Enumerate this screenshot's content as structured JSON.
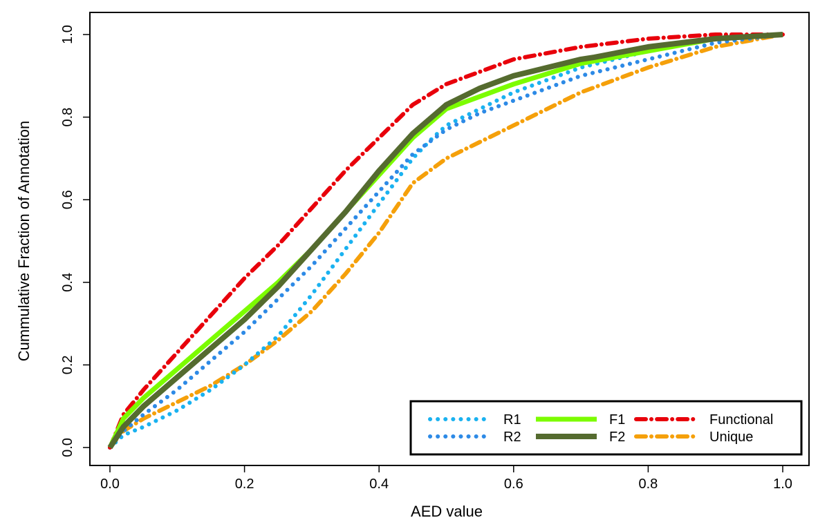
{
  "chart_data": {
    "type": "line",
    "xlabel": "AED value",
    "ylabel": "Cummulative Fraction of Annotation",
    "xlim": [
      0,
      1
    ],
    "ylim": [
      0,
      1
    ],
    "xticks": [
      "0.0",
      "0.2",
      "0.4",
      "0.6",
      "0.8",
      "1.0"
    ],
    "yticks": [
      "0.0",
      "0.2",
      "0.4",
      "0.6",
      "0.8",
      "1.0"
    ],
    "grid": false,
    "legend_position": "bottom-right",
    "series": [
      {
        "name": "R1",
        "color": "#1ab2f0",
        "style": "dotted",
        "x": [
          0,
          0.02,
          0.05,
          0.1,
          0.15,
          0.2,
          0.25,
          0.3,
          0.35,
          0.4,
          0.45,
          0.48,
          0.5,
          0.55,
          0.6,
          0.7,
          0.8,
          0.9,
          1.0
        ],
        "y": [
          0,
          0.03,
          0.05,
          0.09,
          0.14,
          0.2,
          0.27,
          0.37,
          0.48,
          0.59,
          0.7,
          0.75,
          0.78,
          0.82,
          0.86,
          0.92,
          0.96,
          0.99,
          1.0
        ]
      },
      {
        "name": "R2",
        "color": "#2d8ae6",
        "style": "dotted",
        "x": [
          0,
          0.02,
          0.05,
          0.1,
          0.15,
          0.2,
          0.25,
          0.3,
          0.35,
          0.4,
          0.45,
          0.5,
          0.55,
          0.6,
          0.7,
          0.8,
          0.9,
          1.0
        ],
        "y": [
          0,
          0.04,
          0.08,
          0.14,
          0.21,
          0.28,
          0.36,
          0.44,
          0.53,
          0.62,
          0.71,
          0.77,
          0.81,
          0.84,
          0.9,
          0.94,
          0.98,
          1.0
        ]
      },
      {
        "name": "F1",
        "color": "#7cfc00",
        "style": "solid",
        "x": [
          0,
          0.02,
          0.05,
          0.1,
          0.15,
          0.2,
          0.25,
          0.3,
          0.35,
          0.4,
          0.45,
          0.5,
          0.55,
          0.6,
          0.7,
          0.8,
          0.9,
          1.0
        ],
        "y": [
          0,
          0.07,
          0.12,
          0.19,
          0.26,
          0.33,
          0.4,
          0.48,
          0.57,
          0.66,
          0.75,
          0.82,
          0.85,
          0.88,
          0.93,
          0.96,
          0.99,
          1.0
        ]
      },
      {
        "name": "F2",
        "color": "#556b2f",
        "style": "solid",
        "x": [
          0,
          0.02,
          0.05,
          0.1,
          0.15,
          0.2,
          0.25,
          0.3,
          0.35,
          0.4,
          0.45,
          0.5,
          0.55,
          0.6,
          0.7,
          0.72,
          0.8,
          0.9,
          1.0
        ],
        "y": [
          0,
          0.05,
          0.1,
          0.17,
          0.24,
          0.31,
          0.39,
          0.48,
          0.57,
          0.67,
          0.76,
          0.83,
          0.87,
          0.9,
          0.94,
          0.945,
          0.97,
          0.99,
          1.0
        ]
      },
      {
        "name": "Functional",
        "color": "#e8000b",
        "style": "dashdot",
        "x": [
          0,
          0.02,
          0.05,
          0.1,
          0.15,
          0.2,
          0.25,
          0.3,
          0.35,
          0.4,
          0.45,
          0.5,
          0.55,
          0.6,
          0.7,
          0.8,
          0.9,
          1.0
        ],
        "y": [
          0,
          0.08,
          0.14,
          0.23,
          0.32,
          0.41,
          0.49,
          0.58,
          0.67,
          0.75,
          0.83,
          0.88,
          0.91,
          0.94,
          0.97,
          0.99,
          1.0,
          1.0
        ]
      },
      {
        "name": "Unique",
        "color": "#f5a00a",
        "style": "dashdot",
        "x": [
          0,
          0.02,
          0.05,
          0.1,
          0.15,
          0.2,
          0.25,
          0.3,
          0.35,
          0.4,
          0.45,
          0.5,
          0.55,
          0.6,
          0.7,
          0.8,
          0.9,
          1.0
        ],
        "y": [
          0,
          0.04,
          0.07,
          0.11,
          0.15,
          0.2,
          0.26,
          0.33,
          0.42,
          0.52,
          0.64,
          0.7,
          0.74,
          0.78,
          0.86,
          0.92,
          0.97,
          1.0
        ]
      }
    ]
  }
}
